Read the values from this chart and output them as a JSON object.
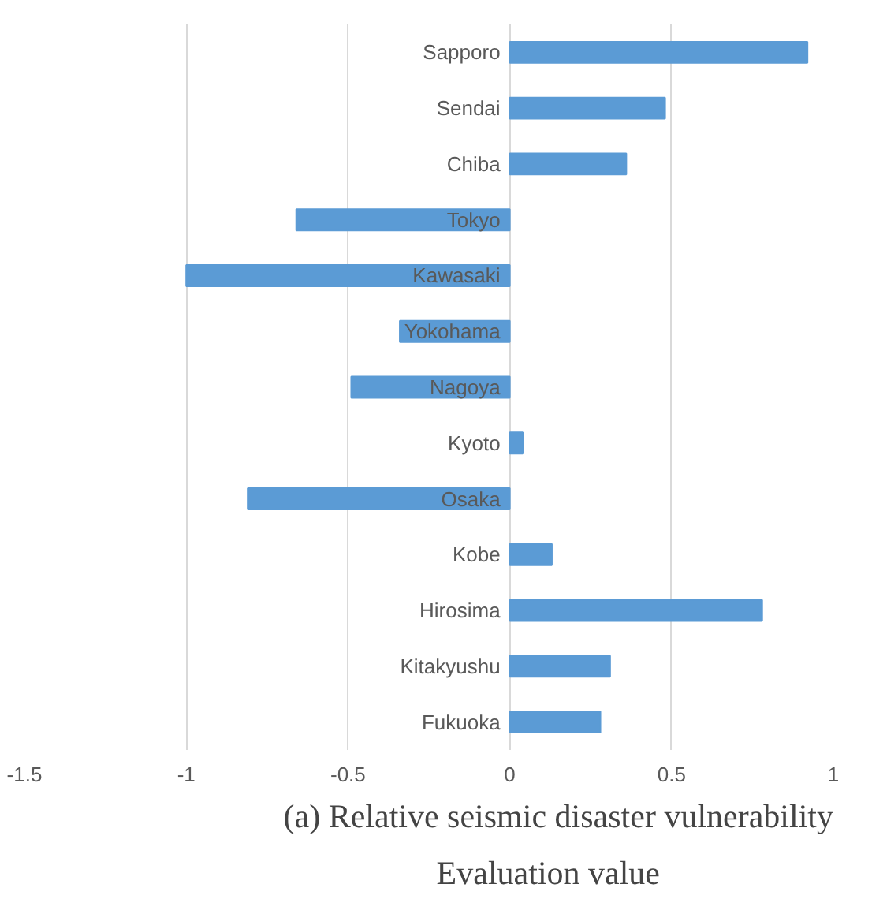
{
  "chart_data": {
    "type": "bar",
    "orientation": "horizontal",
    "title": "(a) Relative seismic disaster vulnerability",
    "xlabel": "Evaluation value",
    "categories": [
      "Sapporo",
      "Sendai",
      "Chiba",
      "Tokyo",
      "Kawasaki",
      "Yokohama",
      "Nagoya",
      "Kyoto",
      "Osaka",
      "Kobe",
      "Hirosima",
      "Kitakyushu",
      "Fukuoka"
    ],
    "values": [
      0.92,
      0.48,
      0.36,
      -0.66,
      -1.0,
      -0.34,
      -0.49,
      0.04,
      -0.81,
      0.13,
      0.78,
      0.31,
      0.28
    ],
    "color": "#5b9bd5",
    "xlim": [
      -1.5,
      1
    ],
    "xticks": [
      -1.5,
      -1,
      -0.5,
      0,
      0.5,
      1
    ],
    "grid": "x"
  }
}
